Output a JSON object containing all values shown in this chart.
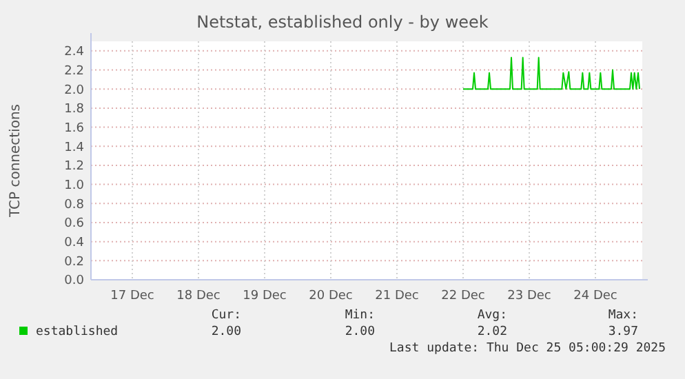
{
  "chart_data": {
    "type": "line",
    "title": "Netstat, established only - by week",
    "ylabel": "TCP connections",
    "xlim": [
      "2025-12-16T21:00",
      "2025-12-25T05:00"
    ],
    "xticks": [
      {
        "value": "2025-12-17T12:00",
        "label": "17 Dec"
      },
      {
        "value": "2025-12-18T12:00",
        "label": "18 Dec"
      },
      {
        "value": "2025-12-19T12:00",
        "label": "19 Dec"
      },
      {
        "value": "2025-12-20T12:00",
        "label": "20 Dec"
      },
      {
        "value": "2025-12-21T12:00",
        "label": "21 Dec"
      },
      {
        "value": "2025-12-22T12:00",
        "label": "22 Dec"
      },
      {
        "value": "2025-12-23T12:00",
        "label": "23 Dec"
      },
      {
        "value": "2025-12-24T12:00",
        "label": "24 Dec"
      }
    ],
    "ylim": [
      0,
      2.5
    ],
    "yticks": [
      {
        "value": 0,
        "label": "0.0"
      },
      {
        "value": 0.2,
        "label": "0.2"
      },
      {
        "value": 0.4,
        "label": "0.4"
      },
      {
        "value": 0.6,
        "label": "0.6"
      },
      {
        "value": 0.8,
        "label": "0.8"
      },
      {
        "value": 1.0,
        "label": "1.0"
      },
      {
        "value": 1.2,
        "label": "1.2"
      },
      {
        "value": 1.4,
        "label": "1.4"
      },
      {
        "value": 1.6,
        "label": "1.6"
      },
      {
        "value": 1.8,
        "label": "1.8"
      },
      {
        "value": 2.0,
        "label": "2.0"
      },
      {
        "value": 2.2,
        "label": "2.2"
      },
      {
        "value": 2.4,
        "label": "2.4"
      }
    ],
    "grid": true,
    "legend": "bottom left",
    "series": [
      {
        "name": "established",
        "color": "#00cc00",
        "x": [
          "2025-12-22T12:00",
          "2025-12-22T15:30",
          "2025-12-22T16:00",
          "2025-12-22T16:30",
          "2025-12-22T21:00",
          "2025-12-22T21:30",
          "2025-12-22T22:00",
          "2025-12-23T05:00",
          "2025-12-23T05:30",
          "2025-12-23T06:00",
          "2025-12-23T09:10",
          "2025-12-23T09:40",
          "2025-12-23T10:10",
          "2025-12-23T14:55",
          "2025-12-23T15:25",
          "2025-12-23T15:55",
          "2025-12-23T23:50",
          "2025-12-24T00:20",
          "2025-12-24T01:20",
          "2025-12-24T02:20",
          "2025-12-24T02:50",
          "2025-12-24T06:50",
          "2025-12-24T07:20",
          "2025-12-24T07:50",
          "2025-12-24T09:20",
          "2025-12-24T09:50",
          "2025-12-24T10:20",
          "2025-12-24T13:20",
          "2025-12-24T13:50",
          "2025-12-24T14:20",
          "2025-12-24T17:45",
          "2025-12-24T18:15",
          "2025-12-24T18:45",
          "2025-12-25T00:30",
          "2025-12-25T01:00",
          "2025-12-25T01:35",
          "2025-12-25T02:10",
          "2025-12-25T02:50",
          "2025-12-25T03:30",
          "2025-12-25T04:00"
        ],
        "values": [
          2.0,
          2.0,
          2.17,
          2.0,
          2.0,
          2.17,
          2.0,
          2.0,
          2.33,
          2.0,
          2.0,
          2.33,
          2.0,
          2.0,
          2.33,
          2.0,
          2.0,
          2.17,
          2.0,
          2.18,
          2.0,
          2.0,
          2.17,
          2.0,
          2.0,
          2.17,
          2.0,
          2.0,
          2.17,
          2.0,
          2.0,
          2.2,
          2.0,
          2.0,
          2.17,
          2.0,
          2.17,
          2.0,
          2.17,
          2.0
        ]
      }
    ],
    "annotations": [
      "Cur:",
      "Min:",
      "Avg:",
      "Max:",
      "2.00",
      "2.00",
      "2.02",
      "3.97",
      "Last update: Thu Dec 25 05:00:29 2025"
    ]
  }
}
